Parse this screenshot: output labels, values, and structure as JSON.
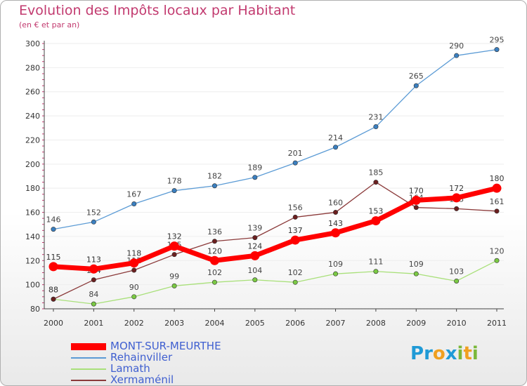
{
  "header": {
    "title": "Evolution des Impôts locaux par Habitant",
    "subtitle": "(en € et par an)"
  },
  "colors": {
    "title": "#c23a6f",
    "axis": "#444444",
    "grid": "#eeeeee",
    "legend_text": "#3f5fd0"
  },
  "brand": {
    "letters": [
      {
        "ch": "P",
        "color": "#1f9ad6"
      },
      {
        "ch": "r",
        "color": "#1f9ad6"
      },
      {
        "ch": "o",
        "color": "#f0a020"
      },
      {
        "ch": "x",
        "color": "#1f9ad6"
      },
      {
        "ch": "i",
        "color": "#7ab83a"
      },
      {
        "ch": "t",
        "color": "#f0a020"
      },
      {
        "ch": "i",
        "color": "#7ab83a"
      }
    ]
  },
  "chart_data": {
    "type": "line",
    "title": "Evolution des Impôts locaux par Habitant",
    "subtitle": "(en € et par an)",
    "xlabel": "",
    "ylabel": "",
    "x": [
      "2000",
      "2001",
      "2002",
      "2003",
      "2004",
      "2005",
      "2006",
      "2007",
      "2008",
      "2009",
      "2010",
      "2011"
    ],
    "ylim": [
      80,
      300
    ],
    "yticks": [
      80,
      100,
      120,
      140,
      160,
      180,
      200,
      220,
      240,
      260,
      280,
      300
    ],
    "grid": true,
    "legend_position": "bottom-left",
    "series": [
      {
        "name": "Rehainviller",
        "color": "#5b9bd5",
        "marker": "#3a7fc0",
        "width": 1.3,
        "values": [
          146,
          152,
          167,
          178,
          182,
          189,
          201,
          214,
          231,
          265,
          290,
          295
        ]
      },
      {
        "name": "Lamath",
        "color": "#a9e07a",
        "marker": "#7ac943",
        "width": 1.3,
        "values": [
          88,
          84,
          90,
          99,
          102,
          104,
          102,
          109,
          111,
          109,
          103,
          120
        ]
      },
      {
        "name": "Xermaménil",
        "color": "#8b3a3a",
        "marker": "#6b1f1f",
        "width": 1.3,
        "values": [
          88,
          104,
          112,
          125,
          136,
          139,
          156,
          160,
          185,
          164,
          163,
          161
        ]
      },
      {
        "name": "MONT-SUR-MEURTHE",
        "color": "#ff0000",
        "marker": "#ff0000",
        "width": 7,
        "values": [
          115,
          113,
          118,
          132,
          120,
          124,
          137,
          143,
          153,
          170,
          172,
          180
        ]
      }
    ],
    "legend_order": [
      "MONT-SUR-MEURTHE",
      "Rehainviller",
      "Lamath",
      "Xermaménil"
    ]
  }
}
